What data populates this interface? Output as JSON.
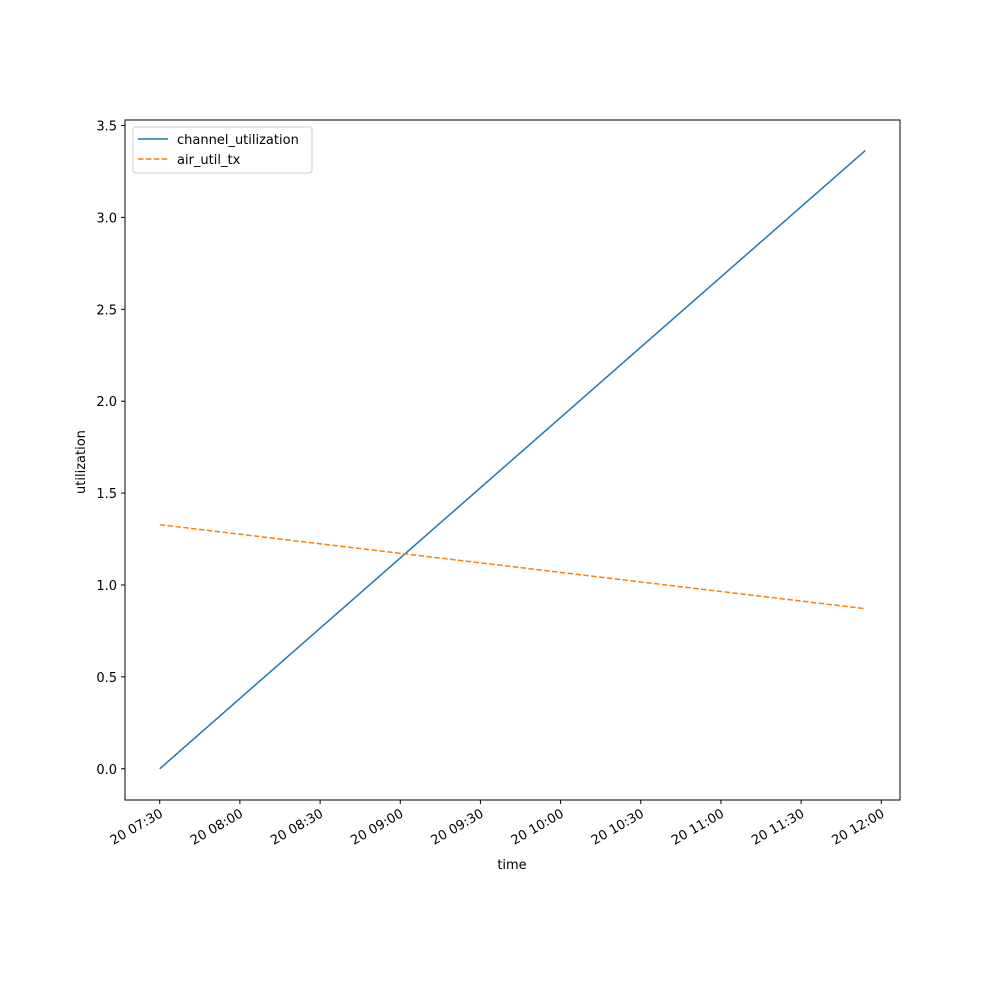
{
  "chart_data": {
    "type": "line",
    "x_label": "time",
    "y_label": "utilization",
    "x": [
      "20 07:30",
      "20 11:54"
    ],
    "series": [
      {
        "name": "channel_utilization",
        "color": "#1f77b4",
        "linestyle": "solid",
        "values": [
          0.0,
          3.364
        ]
      },
      {
        "name": "air_util_tx",
        "color": "#ff7f0e",
        "linestyle": "dashed",
        "values": [
          1.328,
          0.871
        ]
      }
    ],
    "xlim": [
      "20 07:17",
      "20 12:07"
    ],
    "xticks": [
      "20 07:30",
      "20 08:00",
      "20 08:30",
      "20 09:00",
      "20 09:30",
      "20 10:00",
      "20 10:30",
      "20 11:00",
      "20 11:30",
      "20 12:00"
    ],
    "ylim": [
      -0.17,
      3.53
    ],
    "yticks": [
      {
        "value": 0,
        "label": "0.0"
      },
      0.5,
      {
        "value": 1,
        "label": "1.0"
      },
      1.5,
      {
        "value": 2,
        "label": "2.0"
      },
      2.5,
      {
        "value": 3,
        "label": "3.0"
      },
      3.5
    ],
    "grid": false,
    "legend": "upper left"
  }
}
